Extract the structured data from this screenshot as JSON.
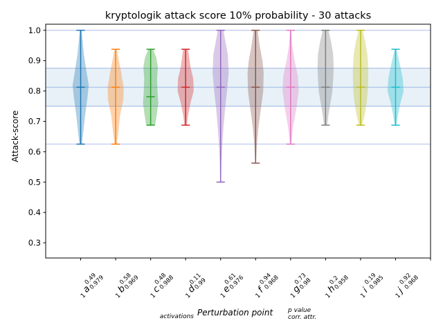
{
  "chart_data": {
    "type": "violin",
    "title": "kryptologik attack score 10% probability - 30 attacks",
    "ylabel": "Attack-score",
    "xlabel": {
      "main": "Perturbation point",
      "sub": "activations",
      "sup": "p value",
      "sup2": "corr. attr."
    },
    "ylim": [
      0.25,
      1.02
    ],
    "yticks": [
      0.3,
      0.4,
      0.5,
      0.6,
      0.7,
      0.8,
      0.9,
      1.0
    ],
    "ytick_labels": [
      "0.3",
      "0.4",
      "0.5",
      "0.6",
      "0.7",
      "0.8",
      "0.9",
      "1.0"
    ],
    "reference_lines": [
      1.0,
      0.625
    ],
    "band": [
      0.75,
      0.875
    ],
    "band_center": 0.8125,
    "grid": false,
    "series": [
      {
        "letter": "a",
        "activations": "1",
        "pvalue": "0.49",
        "corr": "0.979",
        "color": "#1f77b4",
        "min": 0.625,
        "max": 1.0,
        "median": 0.8125
      },
      {
        "letter": "b",
        "activations": "1",
        "pvalue": "0.58",
        "corr": "0.969",
        "color": "#ff7f0e",
        "min": 0.625,
        "max": 0.9375,
        "median": 0.8125
      },
      {
        "letter": "c",
        "activations": "1",
        "pvalue": "0.48",
        "corr": "0.988",
        "color": "#2ca02c",
        "min": 0.6875,
        "max": 0.9375,
        "median": 0.78125
      },
      {
        "letter": "d",
        "activations": "1",
        "pvalue": "0.11",
        "corr": "0.99",
        "color": "#d62728",
        "min": 0.6875,
        "max": 0.9375,
        "median": 0.8125
      },
      {
        "letter": "e",
        "activations": "1",
        "pvalue": "0.61",
        "corr": "0.976",
        "color": "#9467bd",
        "min": 0.5,
        "max": 1.0,
        "median": 0.8125
      },
      {
        "letter": "f",
        "activations": "1",
        "pvalue": "0.94",
        "corr": "0.968",
        "color": "#8c564b",
        "min": 0.5625,
        "max": 1.0,
        "median": 0.8125
      },
      {
        "letter": "g",
        "activations": "1",
        "pvalue": "0.73",
        "corr": "0.98",
        "color": "#e377c2",
        "min": 0.625,
        "max": 1.0,
        "median": 0.8125
      },
      {
        "letter": "h",
        "activations": "1",
        "pvalue": "0.2",
        "corr": "0.958",
        "color": "#7f7f7f",
        "min": 0.6875,
        "max": 1.0,
        "median": 0.8125
      },
      {
        "letter": "i",
        "activations": "1",
        "pvalue": "0.19",
        "corr": "0.985",
        "color": "#bcbd22",
        "min": 0.6875,
        "max": 1.0,
        "median": 0.8125
      },
      {
        "letter": "j",
        "activations": "1",
        "pvalue": "0.92",
        "corr": "0.968",
        "color": "#17becf",
        "min": 0.6875,
        "max": 0.9375,
        "median": 0.8125
      }
    ],
    "profiles": {
      "a": [
        [
          0.625,
          0.15
        ],
        [
          0.66,
          0.3
        ],
        [
          0.72,
          0.55
        ],
        [
          0.78,
          0.85
        ],
        [
          0.82,
          1.0
        ],
        [
          0.86,
          0.75
        ],
        [
          0.92,
          0.4
        ],
        [
          0.97,
          0.22
        ],
        [
          1.0,
          0.12
        ]
      ],
      "b": [
        [
          0.625,
          0.15
        ],
        [
          0.67,
          0.35
        ],
        [
          0.72,
          0.55
        ],
        [
          0.77,
          0.95
        ],
        [
          0.81,
          1.0
        ],
        [
          0.86,
          0.7
        ],
        [
          0.9,
          0.4
        ],
        [
          0.9375,
          0.15
        ]
      ],
      "c": [
        [
          0.6875,
          0.55
        ],
        [
          0.72,
          0.75
        ],
        [
          0.76,
          0.95
        ],
        [
          0.8,
          0.85
        ],
        [
          0.84,
          0.8
        ],
        [
          0.88,
          0.9
        ],
        [
          0.91,
          0.7
        ],
        [
          0.9375,
          0.3
        ]
      ],
      "d": [
        [
          0.6875,
          0.15
        ],
        [
          0.72,
          0.3
        ],
        [
          0.76,
          0.6
        ],
        [
          0.8,
          1.0
        ],
        [
          0.84,
          0.95
        ],
        [
          0.88,
          0.6
        ],
        [
          0.91,
          0.45
        ],
        [
          0.9375,
          0.3
        ]
      ],
      "e": [
        [
          0.5,
          0.05
        ],
        [
          0.56,
          0.1
        ],
        [
          0.62,
          0.2
        ],
        [
          0.68,
          0.35
        ],
        [
          0.74,
          0.55
        ],
        [
          0.8,
          0.8
        ],
        [
          0.86,
          1.0
        ],
        [
          0.92,
          0.9
        ],
        [
          0.97,
          0.55
        ],
        [
          1.0,
          0.35
        ]
      ],
      "f": [
        [
          0.5625,
          0.05
        ],
        [
          0.62,
          0.15
        ],
        [
          0.68,
          0.35
        ],
        [
          0.74,
          0.65
        ],
        [
          0.8,
          0.95
        ],
        [
          0.86,
          1.0
        ],
        [
          0.9,
          0.85
        ],
        [
          0.95,
          0.5
        ],
        [
          1.0,
          0.25
        ]
      ],
      "g": [
        [
          0.625,
          0.08
        ],
        [
          0.68,
          0.3
        ],
        [
          0.74,
          0.7
        ],
        [
          0.8,
          1.0
        ],
        [
          0.85,
          0.9
        ],
        [
          0.9,
          0.5
        ],
        [
          0.95,
          0.2
        ],
        [
          1.0,
          0.08
        ]
      ],
      "h": [
        [
          0.6875,
          0.2
        ],
        [
          0.72,
          0.35
        ],
        [
          0.76,
          0.6
        ],
        [
          0.8,
          0.85
        ],
        [
          0.84,
          0.95
        ],
        [
          0.88,
          1.0
        ],
        [
          0.92,
          0.95
        ],
        [
          0.96,
          0.7
        ],
        [
          1.0,
          0.35
        ]
      ],
      "i": [
        [
          0.6875,
          0.2
        ],
        [
          0.72,
          0.5
        ],
        [
          0.76,
          0.75
        ],
        [
          0.8,
          0.9
        ],
        [
          0.84,
          0.95
        ],
        [
          0.88,
          0.95
        ],
        [
          0.92,
          0.85
        ],
        [
          0.96,
          0.6
        ],
        [
          1.0,
          0.25
        ]
      ],
      "j": [
        [
          0.6875,
          0.1
        ],
        [
          0.72,
          0.3
        ],
        [
          0.76,
          0.6
        ],
        [
          0.8,
          1.0
        ],
        [
          0.84,
          0.9
        ],
        [
          0.88,
          0.6
        ],
        [
          0.91,
          0.35
        ],
        [
          0.9375,
          0.1
        ]
      ]
    }
  }
}
